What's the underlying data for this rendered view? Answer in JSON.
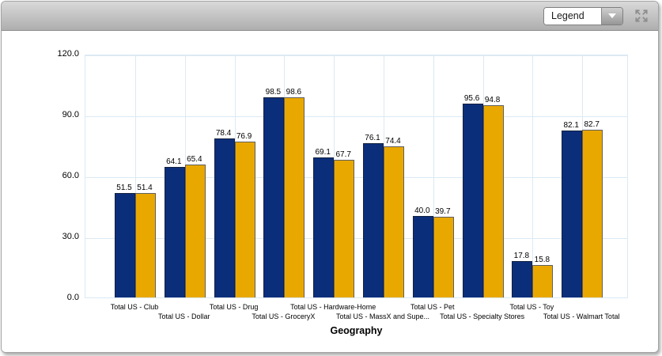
{
  "toolbar": {
    "legend_dropdown": {
      "value": "Legend"
    },
    "expand_icon_name": "expand-arrows-icon"
  },
  "chart_data": {
    "type": "bar",
    "title": "",
    "xlabel": "Geography",
    "ylabel": "",
    "ylim": [
      0,
      120
    ],
    "ytick_step": 30,
    "ytick_labels": [
      "0.0",
      "30.0",
      "60.0",
      "90.0",
      "120.0"
    ],
    "grid": true,
    "legend_position": "collapsed-dropdown",
    "categories": [
      "Total US - Club",
      "Total US - Dollar",
      "Total US - Drug",
      "Total US - GroceryX",
      "Total US - Hardware-Home",
      "Total US - MassX and Supe...",
      "Total US - Pet",
      "Total US - Specialty Stores",
      "Total US - Toy",
      "Total US - Walmart Total"
    ],
    "series": [
      {
        "name": "series_1",
        "color": "#0b2e7b",
        "values": [
          51.5,
          64.1,
          78.4,
          98.5,
          69.1,
          76.1,
          40.0,
          95.6,
          17.8,
          82.1
        ]
      },
      {
        "name": "series_2",
        "color": "#e9a800",
        "values": [
          51.4,
          65.4,
          76.9,
          98.6,
          67.7,
          74.4,
          39.7,
          94.8,
          15.8,
          82.7
        ]
      }
    ],
    "value_label_decimals": 1
  },
  "colors": {
    "grid": "#dce9f4",
    "bar_navy": "#0b2e7b",
    "bar_gold": "#e9a800",
    "toolbar_gradient_top": "#d9d9d9",
    "toolbar_gradient_bottom": "#aeaeae"
  }
}
